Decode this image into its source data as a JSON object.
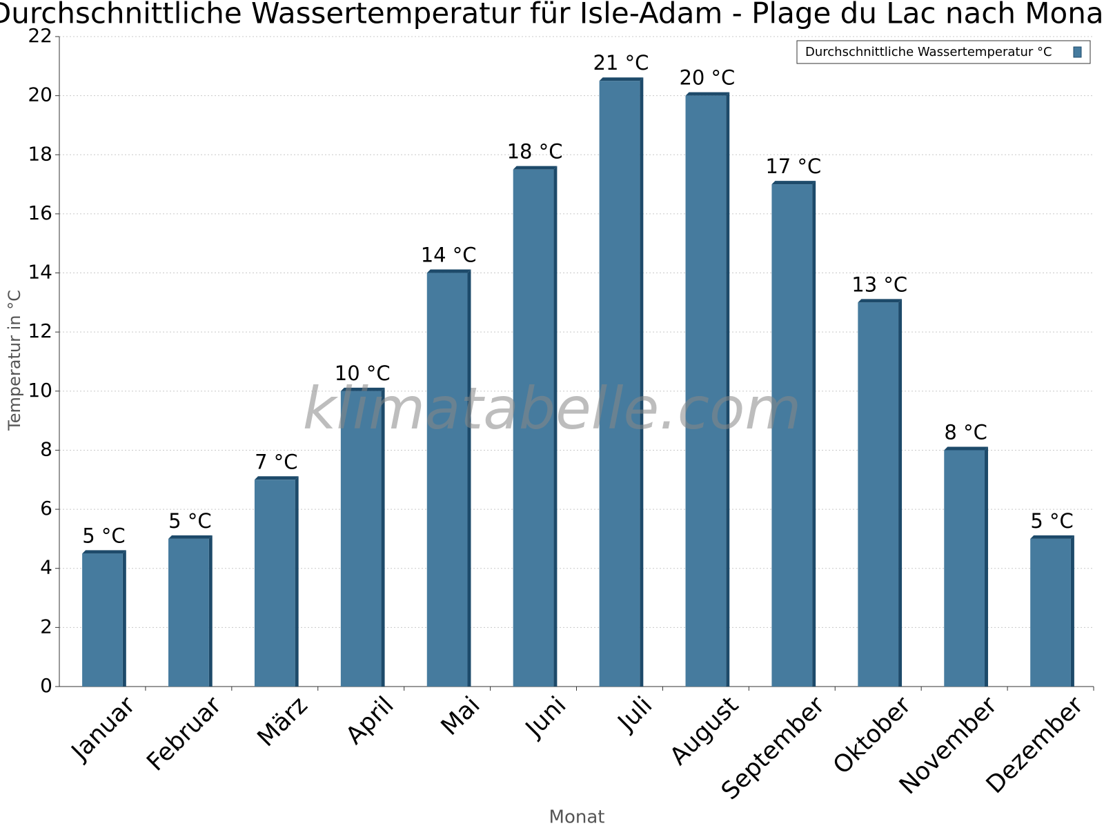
{
  "chart_data": {
    "type": "bar",
    "title": "Durchschnittliche Wassertemperatur für Isle-Adam - Plage du Lac nach Monat",
    "watermark": "klimatabelle.com",
    "x_label": "Monat",
    "y_label": "Temperatur in °C",
    "categories": [
      "Januar",
      "Februar",
      "März",
      "April",
      "Mai",
      "Juni",
      "Juli",
      "August",
      "September",
      "Oktober",
      "November",
      "Dezember"
    ],
    "series": [
      {
        "name": "Durchschnittliche Wassertemperatur °C",
        "color": "#467b9e",
        "values": [
          4.5,
          5,
          7,
          10,
          14,
          17.5,
          20.5,
          20,
          17,
          13,
          8,
          5
        ],
        "value_labels": [
          "5 °C",
          "5 °C",
          "7 °C",
          "10 °C",
          "14 °C",
          "18 °C",
          "21 °C",
          "20 °C",
          "17 °C",
          "13 °C",
          "8 °C",
          "5 °C"
        ]
      }
    ],
    "ylim": [
      0,
      22
    ],
    "yticks": [
      0,
      2,
      4,
      6,
      8,
      10,
      12,
      14,
      16,
      18,
      20,
      22
    ],
    "grid": true,
    "legend": "top-right"
  }
}
